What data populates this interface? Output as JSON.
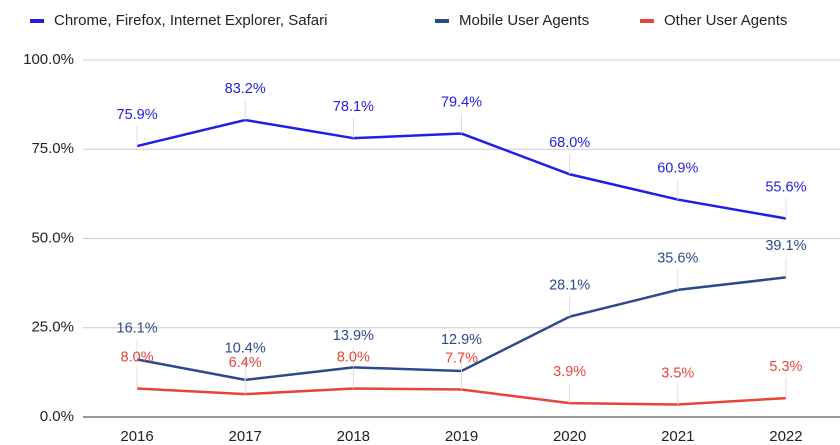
{
  "chart_data": {
    "type": "line",
    "categories": [
      "2016",
      "2017",
      "2018",
      "2019",
      "2020",
      "2021",
      "2022"
    ],
    "series": [
      {
        "name": "Chrome, Firefox, Internet Explorer, Safari",
        "color": "#1f1fe6",
        "values": [
          75.9,
          83.2,
          78.1,
          79.4,
          68.0,
          60.9,
          55.6
        ],
        "value_labels": [
          "75.9%",
          "83.2%",
          "78.1%",
          "79.4%",
          "68.0%",
          "60.9%",
          "55.6%"
        ]
      },
      {
        "name": "Mobile User Agents",
        "color": "#2b4a8e",
        "values": [
          16.1,
          10.4,
          13.9,
          12.9,
          28.1,
          35.6,
          39.1
        ],
        "value_labels": [
          "16.1%",
          "10.4%",
          "13.9%",
          "12.9%",
          "28.1%",
          "35.6%",
          "39.1%"
        ]
      },
      {
        "name": "Other User Agents",
        "color": "#e8443a",
        "values": [
          8.0,
          6.4,
          8.0,
          7.7,
          3.9,
          3.5,
          5.3
        ],
        "value_labels": [
          "8.0%",
          "6.4%",
          "8.0%",
          "7.7%",
          "3.9%",
          "3.5%",
          "5.3%"
        ]
      }
    ],
    "ylim": [
      0,
      100
    ],
    "yticks": [
      {
        "value": 0,
        "label": "0.0%"
      },
      {
        "value": 25,
        "label": "25.0%"
      },
      {
        "value": 50,
        "label": "50.0%"
      },
      {
        "value": 75,
        "label": "75.0%"
      },
      {
        "value": 100,
        "label": "100.0%"
      }
    ],
    "grid": true,
    "legend": "top"
  }
}
